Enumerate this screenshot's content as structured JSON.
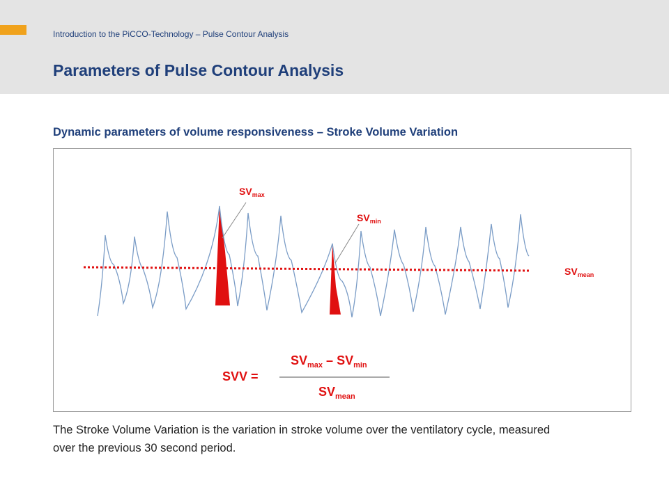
{
  "header": {
    "subtitle": "Introduction to the PiCCO-Technology – Pulse Contour Analysis",
    "title": "Parameters of Pulse Contour Analysis"
  },
  "section_title": "Dynamic parameters of volume responsiveness – Stroke Volume Variation",
  "diagram": {
    "label_sv_max": {
      "main": "SV",
      "sub": "max"
    },
    "label_sv_min": {
      "main": "SV",
      "sub": "min"
    },
    "label_sv_mean": {
      "main": "SV",
      "sub": "mean"
    },
    "formula": {
      "lhs": "SVV =",
      "num_a_main": "SV",
      "num_a_sub": "max",
      "minus": " – ",
      "num_b_main": "SV",
      "num_b_sub": "min",
      "den_main": "SV",
      "den_sub": "mean"
    },
    "colors": {
      "waveform": "#7a9cc6",
      "highlight": "#e01010",
      "mean_line": "#e01010"
    }
  },
  "description": {
    "line1": "The Stroke Volume Variation is the variation in stroke volume over the ventilatory cycle,           measured",
    "line2": "over the previous 30 second period."
  }
}
